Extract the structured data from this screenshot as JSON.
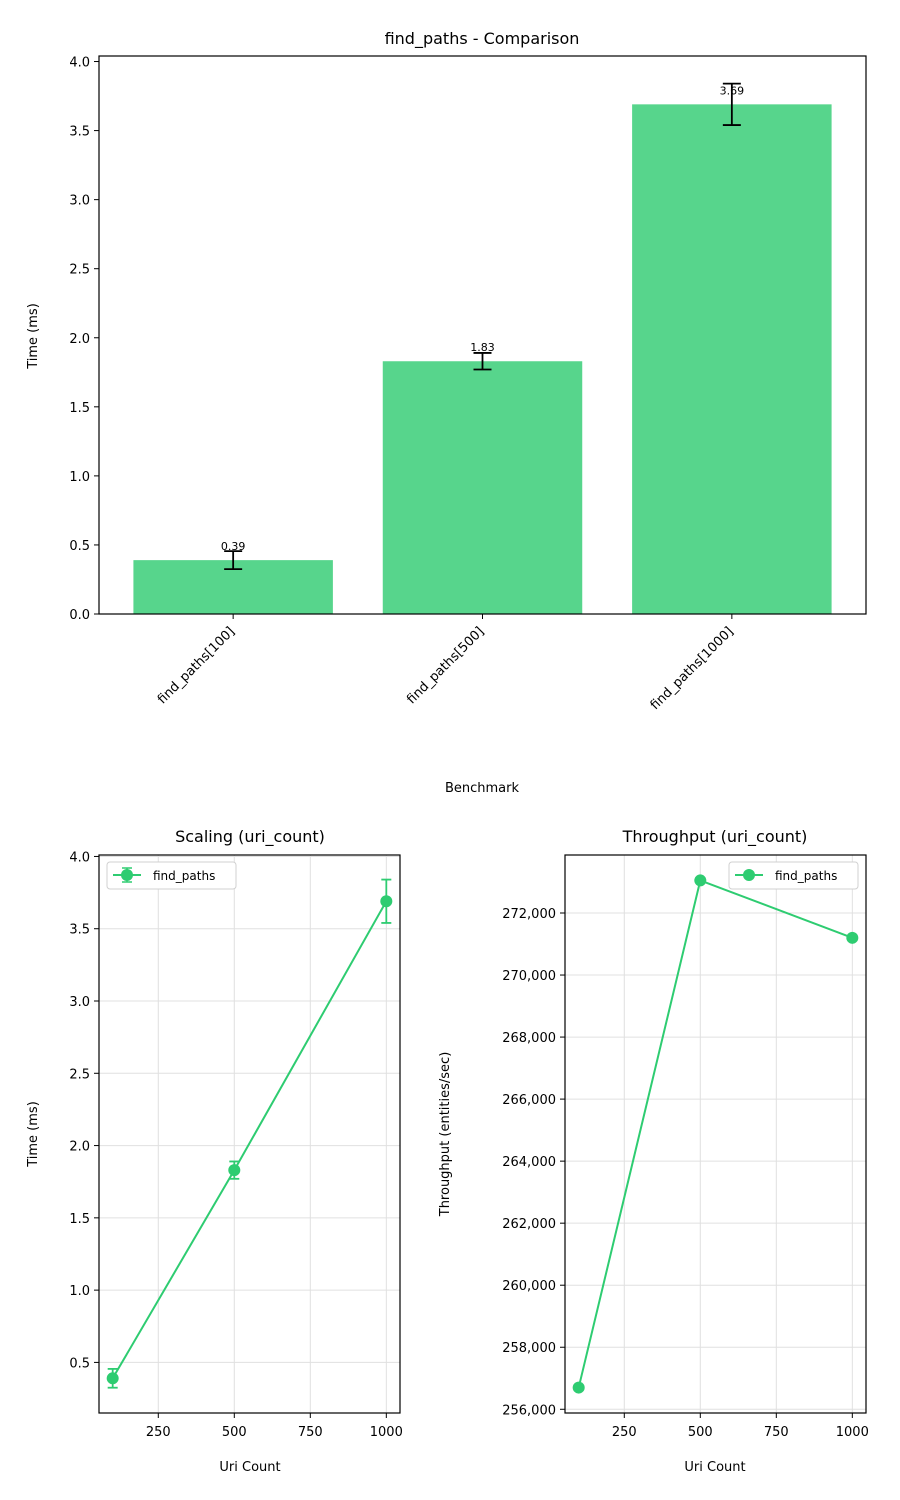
{
  "colors": {
    "bar": "#57d58c",
    "line": "#2ecc71",
    "grid": "#e0e0e0",
    "errorbar_top": "#000000"
  },
  "chart_data": [
    {
      "type": "bar",
      "title": "find_paths - Comparison",
      "xlabel": "Benchmark",
      "ylabel": "Time (ms)",
      "categories": [
        "find_paths[100]",
        "find_paths[500]",
        "find_paths[1000]"
      ],
      "values": [
        0.39,
        1.83,
        3.69
      ],
      "errors": [
        0.065,
        0.06,
        0.15
      ],
      "data_labels": [
        "0.39",
        "1.83",
        "3.69"
      ],
      "ylim": [
        0,
        4.04
      ],
      "yticks": [
        0.0,
        0.5,
        1.0,
        1.5,
        2.0,
        2.5,
        3.0,
        3.5,
        4.0
      ],
      "ytick_labels": [
        "0.0",
        "0.5",
        "1.0",
        "1.5",
        "2.0",
        "2.5",
        "3.0",
        "3.5",
        "4.0"
      ],
      "grid": false
    },
    {
      "type": "line",
      "title": "Scaling (uri_count)",
      "xlabel": "Uri Count",
      "ylabel": "Time (ms)",
      "x": [
        100,
        500,
        1000
      ],
      "series": [
        {
          "name": "find_paths",
          "values": [
            0.39,
            1.83,
            3.69
          ],
          "errors": [
            0.065,
            0.06,
            0.15
          ]
        }
      ],
      "xlim": [
        55,
        1045
      ],
      "ylim": [
        0.15,
        4.01
      ],
      "xticks": [
        250,
        500,
        750,
        1000
      ],
      "xtick_labels": [
        "250",
        "500",
        "750",
        "1000"
      ],
      "yticks": [
        0.5,
        1.0,
        1.5,
        2.0,
        2.5,
        3.0,
        3.5,
        4.0
      ],
      "ytick_labels": [
        "0.5",
        "1.0",
        "1.5",
        "2.0",
        "2.5",
        "3.0",
        "3.5",
        "4.0"
      ],
      "grid": true,
      "legend": "top-left"
    },
    {
      "type": "line",
      "title": "Throughput (uri_count)",
      "xlabel": "Uri Count",
      "ylabel": "Throughput (entities/sec)",
      "x": [
        100,
        500,
        1000
      ],
      "series": [
        {
          "name": "find_paths",
          "values": [
            256700,
            273050,
            271200
          ]
        }
      ],
      "xlim": [
        55,
        1045
      ],
      "ylim": [
        255880,
        273870
      ],
      "xticks": [
        250,
        500,
        750,
        1000
      ],
      "xtick_labels": [
        "250",
        "500",
        "750",
        "1000"
      ],
      "yticks": [
        256000,
        258000,
        260000,
        262000,
        264000,
        266000,
        268000,
        270000,
        272000
      ],
      "ytick_labels": [
        "256,000",
        "258,000",
        "260,000",
        "262,000",
        "264,000",
        "266,000",
        "268,000",
        "270,000",
        "272,000"
      ],
      "grid": true,
      "legend": "top-right"
    }
  ]
}
